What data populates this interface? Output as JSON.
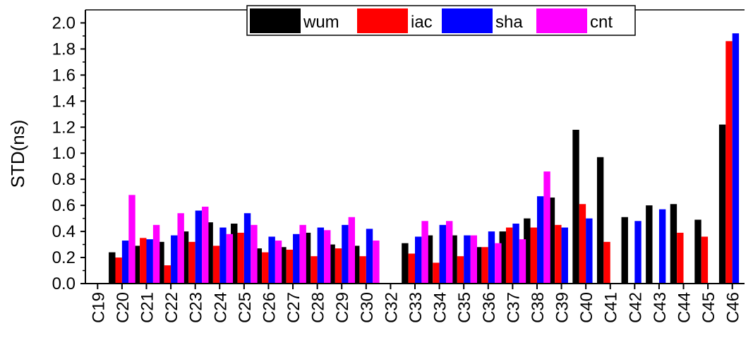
{
  "chart_data": {
    "type": "bar",
    "title": "",
    "xlabel": "",
    "ylabel": "STD(ns)",
    "ylim": [
      0,
      2.1
    ],
    "yticks": [
      "0.0",
      "0.2",
      "0.4",
      "0.6",
      "0.8",
      "1.0",
      "1.2",
      "1.4",
      "1.6",
      "1.8",
      "2.0"
    ],
    "grid": false,
    "legend_position": "top-center",
    "categories": [
      "C19",
      "C20",
      "C21",
      "C22",
      "C23",
      "C24",
      "C25",
      "C26",
      "C27",
      "C28",
      "C29",
      "C30",
      "C32",
      "C33",
      "C34",
      "C35",
      "C36",
      "C37",
      "C38",
      "C39",
      "C40",
      "C41",
      "C42",
      "C43",
      "C44",
      "C45",
      "C46"
    ],
    "series": [
      {
        "name": "wum",
        "color": "#000000",
        "values": [
          null,
          0.24,
          0.29,
          0.32,
          0.4,
          0.47,
          0.46,
          0.27,
          0.28,
          0.39,
          0.3,
          0.29,
          null,
          0.31,
          0.37,
          0.37,
          0.28,
          0.4,
          0.5,
          0.66,
          1.18,
          0.97,
          0.51,
          0.6,
          0.61,
          0.49,
          1.22
        ]
      },
      {
        "name": "iac",
        "color": "#ff0000",
        "values": [
          null,
          0.2,
          0.35,
          0.14,
          0.32,
          0.29,
          0.39,
          0.24,
          0.26,
          0.21,
          0.27,
          0.21,
          null,
          0.23,
          0.16,
          0.21,
          0.28,
          0.43,
          0.43,
          0.45,
          0.61,
          0.32,
          null,
          null,
          0.39,
          0.36,
          1.86
        ]
      },
      {
        "name": "sha",
        "color": "#0000ff",
        "values": [
          null,
          0.33,
          0.34,
          0.37,
          0.56,
          0.43,
          0.54,
          0.36,
          0.38,
          0.43,
          0.45,
          0.42,
          null,
          0.36,
          0.45,
          0.37,
          0.4,
          0.46,
          0.67,
          0.43,
          0.5,
          null,
          0.48,
          0.57,
          null,
          null,
          1.92
        ]
      },
      {
        "name": "cnt",
        "color": "#ff00ff",
        "values": [
          null,
          0.68,
          0.45,
          0.54,
          0.59,
          0.38,
          0.45,
          0.33,
          0.45,
          0.41,
          0.51,
          0.33,
          null,
          0.48,
          0.48,
          0.37,
          0.31,
          0.34,
          0.86,
          null,
          null,
          null,
          null,
          null,
          null,
          null,
          null
        ]
      }
    ]
  }
}
